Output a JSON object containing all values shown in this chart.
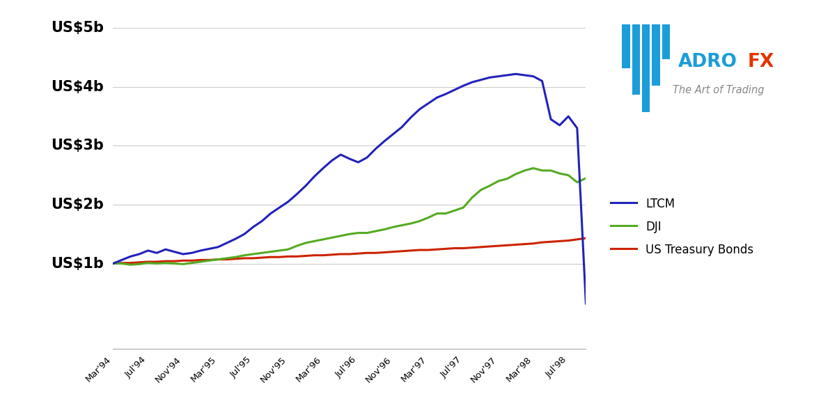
{
  "background_color": "#ffffff",
  "grid_color": "#cccccc",
  "ylim": [
    -0.45,
    5.0
  ],
  "xlim": [
    0,
    54
  ],
  "yticks": [
    1,
    2,
    3,
    4,
    5
  ],
  "ytick_labels": [
    "US$1b",
    "US$2b",
    "US$3b",
    "US$4b",
    "US$5b"
  ],
  "xtick_positions": [
    0,
    4,
    8,
    12,
    16,
    20,
    24,
    28,
    32,
    36,
    40,
    44,
    48,
    52
  ],
  "xtick_labels": [
    "Mar'94",
    "Jul'94",
    "Nov'94",
    "Mar'95",
    "Jul'95",
    "Nov'95",
    "Mar'96",
    "Jul'96",
    "Nov'96",
    "Mar'97",
    "Jul'97",
    "Nov'97",
    "Mar'98",
    "Jul'98"
  ],
  "ltcm_color": "#2222bb",
  "dji_color": "#55aa22",
  "bonds_color": "#cc2200",
  "line_width": 2.2,
  "legend_labels": [
    "LTCM",
    "DJI",
    "US Treasury Bonds"
  ],
  "ltcm_x": [
    0,
    1,
    2,
    3,
    4,
    5,
    6,
    7,
    8,
    9,
    10,
    11,
    12,
    13,
    14,
    15,
    16,
    17,
    18,
    19,
    20,
    21,
    22,
    23,
    24,
    25,
    26,
    27,
    28,
    29,
    30,
    31,
    32,
    33,
    34,
    35,
    36,
    37,
    38,
    39,
    40,
    41,
    42,
    43,
    44,
    45,
    46,
    47,
    48,
    49,
    50,
    51,
    52,
    53,
    54
  ],
  "ltcm_y": [
    1.0,
    1.06,
    1.12,
    1.16,
    1.22,
    1.18,
    1.24,
    1.2,
    1.16,
    1.18,
    1.22,
    1.25,
    1.28,
    1.35,
    1.42,
    1.5,
    1.62,
    1.72,
    1.85,
    1.95,
    2.05,
    2.18,
    2.32,
    2.48,
    2.62,
    2.75,
    2.85,
    2.78,
    2.72,
    2.8,
    2.95,
    3.08,
    3.2,
    3.32,
    3.48,
    3.62,
    3.72,
    3.82,
    3.88,
    3.95,
    4.02,
    4.08,
    4.12,
    4.16,
    4.18,
    4.2,
    4.22,
    4.2,
    4.18,
    4.1,
    3.45,
    3.35,
    3.5,
    3.3,
    0.32
  ],
  "dji_x": [
    0,
    1,
    2,
    3,
    4,
    5,
    6,
    7,
    8,
    9,
    10,
    11,
    12,
    13,
    14,
    15,
    16,
    17,
    18,
    19,
    20,
    21,
    22,
    23,
    24,
    25,
    26,
    27,
    28,
    29,
    30,
    31,
    32,
    33,
    34,
    35,
    36,
    37,
    38,
    39,
    40,
    41,
    42,
    43,
    44,
    45,
    46,
    47,
    48,
    49,
    50,
    51,
    52,
    53,
    54
  ],
  "dji_y": [
    1.0,
    1.0,
    0.98,
    0.99,
    1.01,
    1.0,
    1.01,
    1.0,
    0.99,
    1.01,
    1.03,
    1.05,
    1.07,
    1.09,
    1.11,
    1.14,
    1.16,
    1.18,
    1.2,
    1.22,
    1.24,
    1.3,
    1.35,
    1.38,
    1.41,
    1.44,
    1.47,
    1.5,
    1.52,
    1.52,
    1.55,
    1.58,
    1.62,
    1.65,
    1.68,
    1.72,
    1.78,
    1.85,
    1.85,
    1.9,
    1.95,
    2.12,
    2.25,
    2.32,
    2.4,
    2.44,
    2.52,
    2.58,
    2.62,
    2.58,
    2.58,
    2.53,
    2.5,
    2.38,
    2.45
  ],
  "bonds_x": [
    0,
    1,
    2,
    3,
    4,
    5,
    6,
    7,
    8,
    9,
    10,
    11,
    12,
    13,
    14,
    15,
    16,
    17,
    18,
    19,
    20,
    21,
    22,
    23,
    24,
    25,
    26,
    27,
    28,
    29,
    30,
    31,
    32,
    33,
    34,
    35,
    36,
    37,
    38,
    39,
    40,
    41,
    42,
    43,
    44,
    45,
    46,
    47,
    48,
    49,
    50,
    51,
    52,
    53,
    54
  ],
  "bonds_y": [
    1.0,
    1.01,
    1.01,
    1.02,
    1.03,
    1.03,
    1.04,
    1.04,
    1.05,
    1.05,
    1.06,
    1.06,
    1.07,
    1.07,
    1.08,
    1.09,
    1.09,
    1.1,
    1.11,
    1.11,
    1.12,
    1.12,
    1.13,
    1.14,
    1.14,
    1.15,
    1.16,
    1.16,
    1.17,
    1.18,
    1.18,
    1.19,
    1.2,
    1.21,
    1.22,
    1.23,
    1.23,
    1.24,
    1.25,
    1.26,
    1.26,
    1.27,
    1.28,
    1.29,
    1.3,
    1.31,
    1.32,
    1.33,
    1.34,
    1.36,
    1.37,
    1.38,
    1.39,
    1.41,
    1.43
  ]
}
